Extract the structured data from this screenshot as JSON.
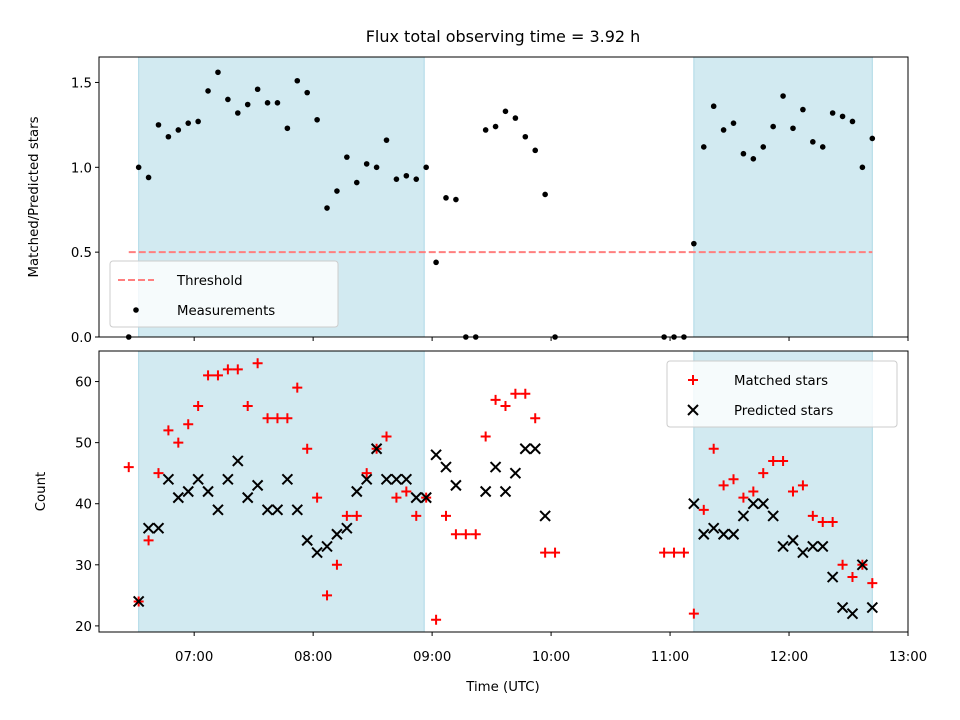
{
  "chart_data": {
    "title": "Flux total observing time = 3.92 h",
    "xlabel": "Time (UTC)",
    "xlim": [
      "06:12",
      "13:00"
    ],
    "xticks": [
      "07:00",
      "08:00",
      "09:00",
      "10:00",
      "11:00",
      "12:00",
      "13:00"
    ],
    "shaded_intervals": [
      {
        "start": "06:32",
        "end": "08:56",
        "color": "#add8e6"
      },
      {
        "start": "11:12",
        "end": "12:42",
        "color": "#add8e6"
      }
    ],
    "panels": [
      {
        "type": "scatter",
        "ylabel": "Matched/Predicted stars",
        "ylim": [
          0,
          1.65
        ],
        "yticks": [
          "0.0",
          "0.5",
          "1.0",
          "1.5"
        ],
        "legend": "lower-left",
        "series": [
          {
            "name": "Threshold",
            "style": "dashed-line",
            "color": "#ff7f7f",
            "x": [
              "06:27",
              "12:42"
            ],
            "y": [
              0.5,
              0.5
            ]
          },
          {
            "name": "Measurements",
            "style": "dot",
            "color": "#000000",
            "points": [
              [
                "06:27",
                0.0
              ],
              [
                "06:32",
                1.0
              ],
              [
                "06:37",
                0.94
              ],
              [
                "06:42",
                1.25
              ],
              [
                "06:47",
                1.18
              ],
              [
                "06:52",
                1.22
              ],
              [
                "06:57",
                1.26
              ],
              [
                "07:02",
                1.27
              ],
              [
                "07:07",
                1.45
              ],
              [
                "07:12",
                1.56
              ],
              [
                "07:17",
                1.4
              ],
              [
                "07:22",
                1.32
              ],
              [
                "07:27",
                1.37
              ],
              [
                "07:32",
                1.46
              ],
              [
                "07:37",
                1.38
              ],
              [
                "07:42",
                1.38
              ],
              [
                "07:47",
                1.23
              ],
              [
                "07:52",
                1.51
              ],
              [
                "07:57",
                1.44
              ],
              [
                "08:02",
                1.28
              ],
              [
                "08:07",
                0.76
              ],
              [
                "08:12",
                0.86
              ],
              [
                "08:17",
                1.06
              ],
              [
                "08:22",
                0.91
              ],
              [
                "08:27",
                1.02
              ],
              [
                "08:32",
                1.0
              ],
              [
                "08:37",
                1.16
              ],
              [
                "08:42",
                0.93
              ],
              [
                "08:47",
                0.95
              ],
              [
                "08:52",
                0.93
              ],
              [
                "08:57",
                1.0
              ],
              [
                "09:02",
                0.44
              ],
              [
                "09:07",
                0.82
              ],
              [
                "09:12",
                0.81
              ],
              [
                "09:17",
                0.0
              ],
              [
                "09:22",
                0.0
              ],
              [
                "09:27",
                1.22
              ],
              [
                "09:32",
                1.24
              ],
              [
                "09:37",
                1.33
              ],
              [
                "09:42",
                1.29
              ],
              [
                "09:47",
                1.18
              ],
              [
                "09:52",
                1.1
              ],
              [
                "09:57",
                0.84
              ],
              [
                "10:02",
                0.0
              ],
              [
                "10:57",
                0.0
              ],
              [
                "11:02",
                0.0
              ],
              [
                "11:07",
                0.0
              ],
              [
                "11:12",
                0.55
              ],
              [
                "11:17",
                1.12
              ],
              [
                "11:22",
                1.36
              ],
              [
                "11:27",
                1.22
              ],
              [
                "11:32",
                1.26
              ],
              [
                "11:37",
                1.08
              ],
              [
                "11:42",
                1.05
              ],
              [
                "11:47",
                1.12
              ],
              [
                "11:52",
                1.24
              ],
              [
                "11:57",
                1.42
              ],
              [
                "12:02",
                1.23
              ],
              [
                "12:07",
                1.34
              ],
              [
                "12:12",
                1.15
              ],
              [
                "12:17",
                1.12
              ],
              [
                "12:22",
                1.32
              ],
              [
                "12:27",
                1.3
              ],
              [
                "12:32",
                1.27
              ],
              [
                "12:37",
                1.0
              ],
              [
                "12:42",
                1.17
              ]
            ]
          }
        ]
      },
      {
        "type": "scatter",
        "ylabel": "Count",
        "ylim": [
          19,
          65
        ],
        "yticks": [
          "20",
          "30",
          "40",
          "50",
          "60"
        ],
        "legend": "upper-right",
        "series": [
          {
            "name": "Matched stars",
            "marker": "+",
            "color": "#ff0000",
            "points": [
              [
                "06:27",
                46
              ],
              [
                "06:32",
                24
              ],
              [
                "06:37",
                34
              ],
              [
                "06:42",
                45
              ],
              [
                "06:47",
                52
              ],
              [
                "06:52",
                50
              ],
              [
                "06:57",
                53
              ],
              [
                "07:02",
                56
              ],
              [
                "07:07",
                61
              ],
              [
                "07:12",
                61
              ],
              [
                "07:17",
                62
              ],
              [
                "07:22",
                62
              ],
              [
                "07:27",
                56
              ],
              [
                "07:32",
                63
              ],
              [
                "07:37",
                54
              ],
              [
                "07:42",
                54
              ],
              [
                "07:47",
                54
              ],
              [
                "07:52",
                59
              ],
              [
                "07:57",
                49
              ],
              [
                "08:02",
                41
              ],
              [
                "08:07",
                25
              ],
              [
                "08:12",
                30
              ],
              [
                "08:17",
                38
              ],
              [
                "08:22",
                38
              ],
              [
                "08:27",
                45
              ],
              [
                "08:32",
                49
              ],
              [
                "08:37",
                51
              ],
              [
                "08:42",
                41
              ],
              [
                "08:47",
                42
              ],
              [
                "08:52",
                38
              ],
              [
                "08:57",
                41
              ],
              [
                "09:02",
                21
              ],
              [
                "09:07",
                38
              ],
              [
                "09:12",
                35
              ],
              [
                "09:17",
                35
              ],
              [
                "09:22",
                35
              ],
              [
                "09:27",
                51
              ],
              [
                "09:32",
                57
              ],
              [
                "09:37",
                56
              ],
              [
                "09:42",
                58
              ],
              [
                "09:47",
                58
              ],
              [
                "09:52",
                54
              ],
              [
                "09:57",
                32
              ],
              [
                "10:02",
                32
              ],
              [
                "10:57",
                32
              ],
              [
                "11:02",
                32
              ],
              [
                "11:07",
                32
              ],
              [
                "11:12",
                22
              ],
              [
                "11:17",
                39
              ],
              [
                "11:22",
                49
              ],
              [
                "11:27",
                43
              ],
              [
                "11:32",
                44
              ],
              [
                "11:37",
                41
              ],
              [
                "11:42",
                42
              ],
              [
                "11:47",
                45
              ],
              [
                "11:52",
                47
              ],
              [
                "11:57",
                47
              ],
              [
                "12:02",
                42
              ],
              [
                "12:07",
                43
              ],
              [
                "12:12",
                38
              ],
              [
                "12:17",
                37
              ],
              [
                "12:22",
                37
              ],
              [
                "12:27",
                30
              ],
              [
                "12:32",
                28
              ],
              [
                "12:37",
                30
              ],
              [
                "12:42",
                27
              ]
            ]
          },
          {
            "name": "Predicted stars",
            "marker": "x",
            "color": "#000000",
            "points": [
              [
                "06:32",
                24
              ],
              [
                "06:37",
                36
              ],
              [
                "06:42",
                36
              ],
              [
                "06:47",
                44
              ],
              [
                "06:52",
                41
              ],
              [
                "06:57",
                42
              ],
              [
                "07:02",
                44
              ],
              [
                "07:07",
                42
              ],
              [
                "07:12",
                39
              ],
              [
                "07:17",
                44
              ],
              [
                "07:22",
                47
              ],
              [
                "07:27",
                41
              ],
              [
                "07:32",
                43
              ],
              [
                "07:37",
                39
              ],
              [
                "07:42",
                39
              ],
              [
                "07:47",
                44
              ],
              [
                "07:52",
                39
              ],
              [
                "07:57",
                34
              ],
              [
                "08:02",
                32
              ],
              [
                "08:07",
                33
              ],
              [
                "08:12",
                35
              ],
              [
                "08:17",
                36
              ],
              [
                "08:22",
                42
              ],
              [
                "08:27",
                44
              ],
              [
                "08:32",
                49
              ],
              [
                "08:37",
                44
              ],
              [
                "08:42",
                44
              ],
              [
                "08:47",
                44
              ],
              [
                "08:52",
                41
              ],
              [
                "08:57",
                41
              ],
              [
                "09:02",
                48
              ],
              [
                "09:07",
                46
              ],
              [
                "09:12",
                43
              ],
              [
                "09:27",
                42
              ],
              [
                "09:32",
                46
              ],
              [
                "09:37",
                42
              ],
              [
                "09:42",
                45
              ],
              [
                "09:47",
                49
              ],
              [
                "09:52",
                49
              ],
              [
                "09:57",
                38
              ],
              [
                "11:12",
                40
              ],
              [
                "11:17",
                35
              ],
              [
                "11:22",
                36
              ],
              [
                "11:27",
                35
              ],
              [
                "11:32",
                35
              ],
              [
                "11:37",
                38
              ],
              [
                "11:42",
                40
              ],
              [
                "11:47",
                40
              ],
              [
                "11:52",
                38
              ],
              [
                "11:57",
                33
              ],
              [
                "12:02",
                34
              ],
              [
                "12:07",
                32
              ],
              [
                "12:12",
                33
              ],
              [
                "12:17",
                33
              ],
              [
                "12:22",
                28
              ],
              [
                "12:27",
                23
              ],
              [
                "12:32",
                22
              ],
              [
                "12:37",
                30
              ],
              [
                "12:42",
                23
              ]
            ]
          }
        ]
      }
    ]
  }
}
